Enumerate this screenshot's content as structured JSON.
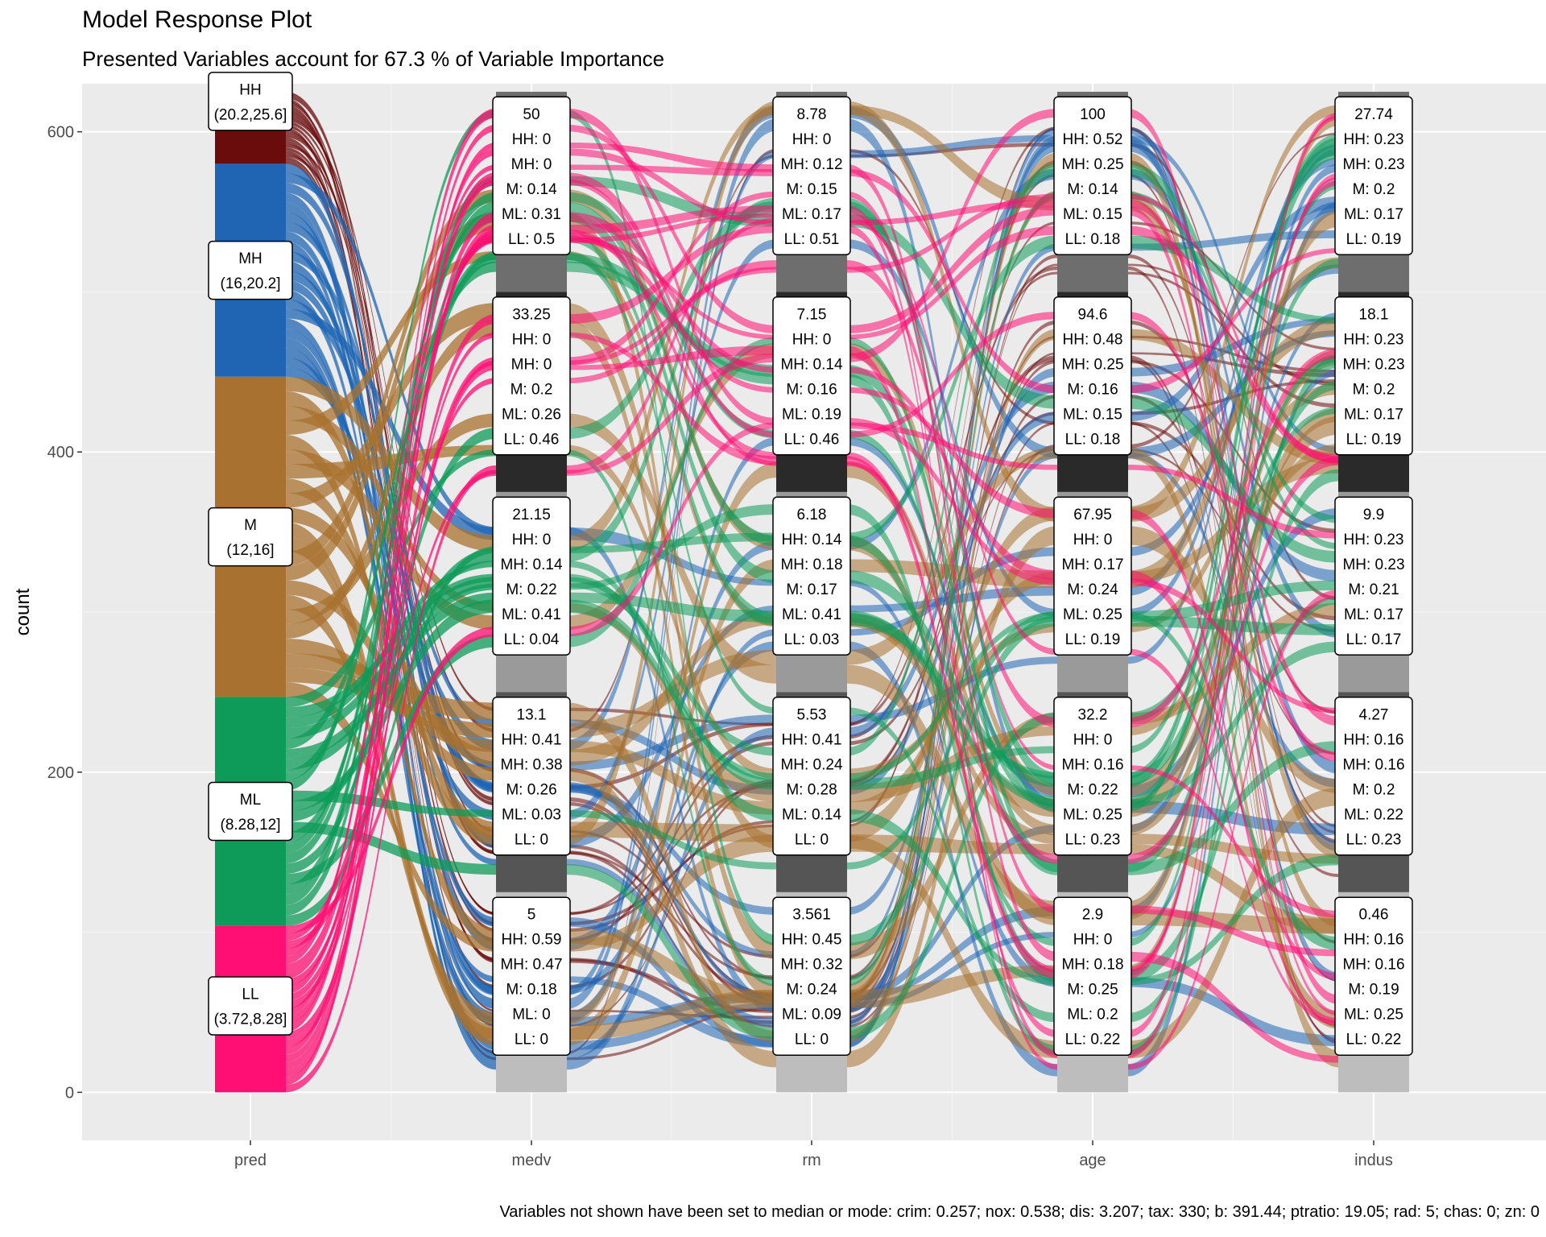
{
  "chart_data": {
    "type": "alluvial",
    "title": "Model Response Plot",
    "subtitle": "Presented Variables account for 67.3 % of Variable Importance",
    "caption": "Variables not shown have been set to median or mode: crim: 0.257; nox: 0.538; dis: 3.207; tax: 330; b: 391.44; ptratio: 19.05; rad: 5; chas: 0; zn: 0",
    "ylabel": "count",
    "xlabel": "",
    "ylim": [
      -30,
      630
    ],
    "y_ticks": [
      0,
      200,
      400,
      600
    ],
    "grid": true,
    "total": 625,
    "axes": [
      "pred",
      "medv",
      "rm",
      "age",
      "indus"
    ],
    "pred_classes": [
      "HH",
      "MH",
      "M",
      "ML",
      "LL"
    ],
    "class_colors": {
      "HH": "#6b0c0c",
      "MH": "#1f65b4",
      "M": "#a8712f",
      "ML": "#0e9b5a",
      "LL": "#ff0f73"
    },
    "pred_strata": [
      {
        "class": "HH",
        "label": "HH\n(20.2,25.6]",
        "count": 45
      },
      {
        "class": "MH",
        "label": "MH\n(16,20.2]",
        "count": 133
      },
      {
        "class": "M",
        "label": "M\n(12,16]",
        "count": 200
      },
      {
        "class": "ML",
        "label": "ML\n(8.28,12]",
        "count": 143
      },
      {
        "class": "LL",
        "label": "LL\n(3.72,8.28]",
        "count": 104
      }
    ],
    "feature_strata": {
      "medv": [
        {
          "value": "50",
          "HH": 0,
          "MH": 0,
          "M": 0.14,
          "ML": 0.31,
          "LL": 0.5
        },
        {
          "value": "33.25",
          "HH": 0,
          "MH": 0,
          "M": 0.2,
          "ML": 0.26,
          "LL": 0.46
        },
        {
          "value": "21.15",
          "HH": 0,
          "MH": 0.14,
          "M": 0.22,
          "ML": 0.41,
          "LL": 0.04
        },
        {
          "value": "13.1",
          "HH": 0.41,
          "MH": 0.38,
          "M": 0.26,
          "ML": 0.03,
          "LL": 0
        },
        {
          "value": "5",
          "HH": 0.59,
          "MH": 0.47,
          "M": 0.18,
          "ML": 0,
          "LL": 0
        }
      ],
      "rm": [
        {
          "value": "8.78",
          "HH": 0,
          "MH": 0.12,
          "M": 0.15,
          "ML": 0.17,
          "LL": 0.51
        },
        {
          "value": "7.15",
          "HH": 0,
          "MH": 0.14,
          "M": 0.16,
          "ML": 0.19,
          "LL": 0.46
        },
        {
          "value": "6.18",
          "HH": 0.14,
          "MH": 0.18,
          "M": 0.17,
          "ML": 0.41,
          "LL": 0.03
        },
        {
          "value": "5.53",
          "HH": 0.41,
          "MH": 0.24,
          "M": 0.28,
          "ML": 0.14,
          "LL": 0
        },
        {
          "value": "3.561",
          "HH": 0.45,
          "MH": 0.32,
          "M": 0.24,
          "ML": 0.09,
          "LL": 0
        }
      ],
      "age": [
        {
          "value": "100",
          "HH": 0.52,
          "MH": 0.25,
          "M": 0.14,
          "ML": 0.15,
          "LL": 0.18
        },
        {
          "value": "94.6",
          "HH": 0.48,
          "MH": 0.25,
          "M": 0.16,
          "ML": 0.15,
          "LL": 0.18
        },
        {
          "value": "67.95",
          "HH": 0,
          "MH": 0.17,
          "M": 0.24,
          "ML": 0.25,
          "LL": 0.19
        },
        {
          "value": "32.2",
          "HH": 0,
          "MH": 0.16,
          "M": 0.22,
          "ML": 0.25,
          "LL": 0.23
        },
        {
          "value": "2.9",
          "HH": 0,
          "MH": 0.18,
          "M": 0.25,
          "ML": 0.2,
          "LL": 0.22
        }
      ],
      "indus": [
        {
          "value": "27.74",
          "HH": 0.23,
          "MH": 0.23,
          "M": 0.2,
          "ML": 0.17,
          "LL": 0.19
        },
        {
          "value": "18.1",
          "HH": 0.23,
          "MH": 0.23,
          "M": 0.2,
          "ML": 0.17,
          "LL": 0.19
        },
        {
          "value": "9.9",
          "HH": 0.23,
          "MH": 0.23,
          "M": 0.21,
          "ML": 0.17,
          "LL": 0.17
        },
        {
          "value": "4.27",
          "HH": 0.16,
          "MH": 0.16,
          "M": 0.2,
          "ML": 0.22,
          "LL": 0.23
        },
        {
          "value": "0.46",
          "HH": 0.16,
          "MH": 0.16,
          "M": 0.19,
          "ML": 0.25,
          "LL": 0.22
        }
      ]
    },
    "stratum_fill_shades": [
      "#6e6e6e",
      "#2a2a2a",
      "#9a9a9a",
      "#555555",
      "#bdbdbd"
    ]
  }
}
